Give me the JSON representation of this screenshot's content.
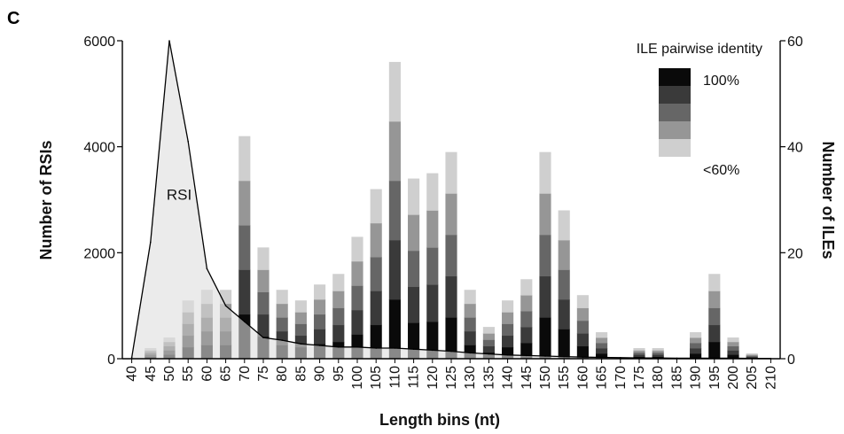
{
  "chart_data": {
    "type": "bar",
    "panel_label": "C",
    "xlabel": "Length bins (nt)",
    "ylabel_left": "Number of RSIs",
    "ylabel_right": "Number of ILEs",
    "ylim_left": [
      0,
      6000
    ],
    "ylim_right": [
      0,
      60
    ],
    "yticks_left": [
      "0",
      "2000",
      "4000",
      "6000"
    ],
    "yticks_right": [
      "0",
      "20",
      "40",
      "60"
    ],
    "categories": [
      "40",
      "45",
      "50",
      "55",
      "60",
      "65",
      "70",
      "75",
      "80",
      "85",
      "90",
      "95",
      "100",
      "105",
      "110",
      "115",
      "120",
      "125",
      "130",
      "135",
      "140",
      "145",
      "150",
      "155",
      "160",
      "165",
      "170",
      "175",
      "180",
      "185",
      "190",
      "195",
      "200",
      "205",
      "210"
    ],
    "legend": {
      "title": "ILE pairwise identity",
      "high_label": "100%",
      "low_label": "<60%",
      "position": "top-right",
      "shades": [
        "#0a0a0a",
        "#3a3a3a",
        "#666666",
        "#969696",
        "#cfcfcf"
      ]
    },
    "series": [
      {
        "axis": "right",
        "kind": "stacked-bar",
        "legend_ref": "ILE pairwise identity",
        "values": [
          0,
          2,
          4,
          11,
          13,
          13,
          42,
          21,
          13,
          11,
          14,
          16,
          23,
          32,
          56,
          34,
          35,
          39,
          13,
          6,
          11,
          15,
          39,
          28,
          12,
          5,
          0,
          2,
          2,
          0,
          5,
          16,
          4,
          1,
          0
        ]
      },
      {
        "name": "RSI",
        "axis": "left",
        "kind": "area",
        "values": [
          20,
          2200,
          6000,
          4100,
          1700,
          1000,
          700,
          400,
          350,
          280,
          250,
          220,
          220,
          200,
          200,
          180,
          160,
          140,
          110,
          90,
          70,
          60,
          50,
          40,
          30,
          25,
          20,
          15,
          15,
          10,
          10,
          10,
          10,
          5,
          5
        ]
      }
    ]
  }
}
